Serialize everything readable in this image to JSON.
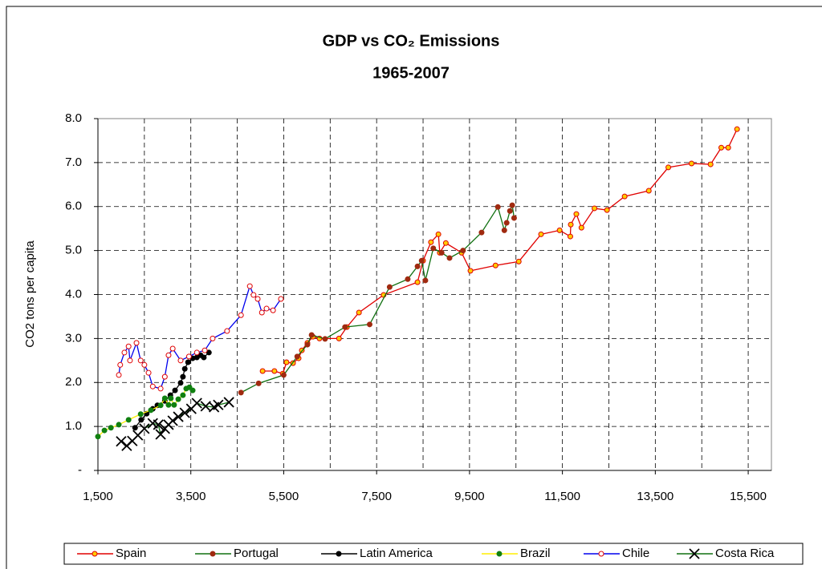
{
  "chart_data": {
    "type": "scatter",
    "title": "GDP vs CO₂ Emissions",
    "subtitle": "1965-2007",
    "y_label": "CO2 tons per capita",
    "xlim": [
      1500,
      16000
    ],
    "ylim": [
      0,
      8
    ],
    "xticks": [
      {
        "value": 1500,
        "label": "1,500"
      },
      {
        "value": 3500,
        "label": "3,500"
      },
      {
        "value": 5500,
        "label": "5,500"
      },
      {
        "value": 7500,
        "label": "7,500"
      },
      {
        "value": 9500,
        "label": "9,500"
      },
      {
        "value": 11500,
        "label": "11,500"
      },
      {
        "value": 13500,
        "label": "13,500"
      },
      {
        "value": 15500,
        "label": "15,500"
      }
    ],
    "yticks": [
      {
        "value": 0,
        "label": "-"
      },
      {
        "value": 1,
        "label": "1.0"
      },
      {
        "value": 2,
        "label": "2.0"
      },
      {
        "value": 3,
        "label": "3.0"
      },
      {
        "value": 4,
        "label": "4.0"
      },
      {
        "value": 5,
        "label": "5.0"
      },
      {
        "value": 6,
        "label": "6.0"
      },
      {
        "value": 7,
        "label": "7.0"
      },
      {
        "value": 8,
        "label": "8.0"
      }
    ],
    "grid": true,
    "legend": "bottom",
    "series": [
      {
        "name": "Spain",
        "color": "#e00000",
        "marker": "circle",
        "marker_color": "#ffcc00",
        "x": [
          5045,
          5300,
          5480,
          5560,
          5700,
          5820,
          5890,
          6010,
          6130,
          6270,
          6690,
          6860,
          7120,
          7650,
          8380,
          8500,
          8670,
          8830,
          8860,
          8990,
          9330,
          9520,
          10060,
          10560,
          11040,
          11440,
          11670,
          11680,
          11800,
          11910,
          12190,
          12460,
          12840,
          13360,
          13780,
          14280,
          14690,
          14920,
          15070,
          15260
        ],
        "values": [
          2.26,
          2.26,
          2.2,
          2.46,
          2.44,
          2.55,
          2.73,
          2.9,
          3.04,
          3.0,
          3.0,
          3.26,
          3.59,
          3.99,
          4.28,
          4.77,
          5.19,
          5.37,
          4.95,
          5.17,
          4.95,
          4.54,
          4.66,
          4.75,
          5.37,
          5.46,
          5.32,
          5.59,
          5.83,
          5.52,
          5.96,
          5.92,
          6.23,
          6.36,
          6.89,
          6.98,
          6.96,
          7.34,
          7.34,
          7.76
        ]
      },
      {
        "name": "Portugal",
        "color": "#107010",
        "marker": "circle",
        "marker_color": "#a02a10",
        "x": [
          4580,
          4960,
          5500,
          5790,
          6010,
          6100,
          6390,
          6820,
          7350,
          7780,
          8170,
          8380,
          8470,
          8550,
          8720,
          8900,
          9070,
          9360,
          9760,
          10110,
          10250,
          10300,
          10370,
          10420,
          10460
        ],
        "values": [
          1.77,
          1.98,
          2.17,
          2.59,
          2.86,
          3.08,
          2.99,
          3.26,
          3.32,
          4.17,
          4.35,
          4.64,
          4.77,
          4.32,
          5.05,
          4.95,
          4.83,
          5.0,
          5.41,
          5.99,
          5.46,
          5.63,
          5.9,
          6.03,
          5.74
        ]
      },
      {
        "name": "Latin America",
        "color": "#000000",
        "marker": "circle",
        "marker_color": "#000000",
        "x": [
          2300,
          2430,
          2550,
          2680,
          2780,
          2940,
          3060,
          3160,
          3280,
          3330,
          3370,
          3440,
          3540,
          3630,
          3710,
          3780,
          3890
        ],
        "values": [
          0.97,
          1.15,
          1.29,
          1.4,
          1.48,
          1.58,
          1.71,
          1.82,
          1.99,
          2.13,
          2.31,
          2.46,
          2.55,
          2.57,
          2.62,
          2.57,
          2.68
        ]
      },
      {
        "name": "Brazil",
        "color": "#ffee00",
        "marker": "circle",
        "marker_color": "#108010",
        "x": [
          1500,
          1640,
          1780,
          1950,
          2160,
          2420,
          2640,
          2850,
          2940,
          3020,
          3070,
          3140,
          3230,
          3330,
          3400,
          3470,
          3540
        ],
        "values": [
          0.77,
          0.91,
          0.97,
          1.04,
          1.15,
          1.28,
          1.37,
          1.48,
          1.64,
          1.49,
          1.64,
          1.49,
          1.62,
          1.71,
          1.86,
          1.89,
          1.82
        ]
      },
      {
        "name": "Chile",
        "color": "#0000ee",
        "marker": "circle",
        "marker_color": "#ffffff",
        "x": [
          1950,
          1980,
          2070,
          2160,
          2190,
          2330,
          2420,
          2500,
          2590,
          2680,
          2850,
          2940,
          3020,
          3110,
          3280,
          3460,
          3630,
          3800,
          3970,
          4280,
          4580,
          4770,
          4850,
          4940,
          5030,
          5130,
          5270,
          5440
        ],
        "values": [
          2.17,
          2.4,
          2.68,
          2.82,
          2.5,
          2.9,
          2.5,
          2.4,
          2.22,
          1.91,
          1.86,
          2.13,
          2.62,
          2.77,
          2.5,
          2.59,
          2.68,
          2.73,
          3.0,
          3.17,
          3.53,
          4.19,
          3.99,
          3.9,
          3.59,
          3.68,
          3.64,
          3.9
        ]
      },
      {
        "name": "Costa Rica",
        "color": "#107010",
        "marker": "x",
        "marker_color": "#000000",
        "x": [
          2000,
          2120,
          2240,
          2360,
          2500,
          2680,
          2800,
          2850,
          2940,
          3020,
          3110,
          3230,
          3370,
          3510,
          3630,
          3820,
          4000,
          4090,
          4320
        ],
        "values": [
          0.66,
          0.56,
          0.67,
          0.8,
          0.95,
          1.07,
          1.04,
          0.82,
          0.95,
          1.04,
          1.13,
          1.22,
          1.31,
          1.4,
          1.53,
          1.46,
          1.44,
          1.49,
          1.55
        ]
      }
    ]
  }
}
